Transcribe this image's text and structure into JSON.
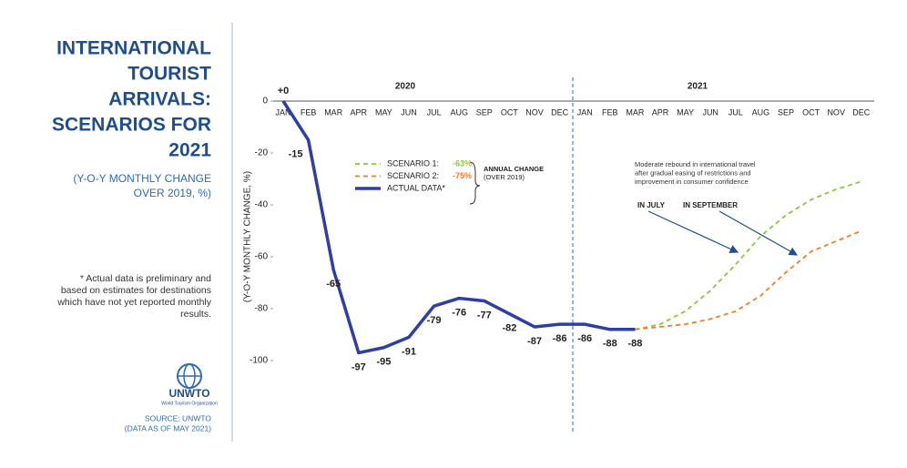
{
  "chart_data": {
    "type": "line",
    "title": [
      "INTERNATIONAL",
      "TOURIST",
      "ARRIVALS:",
      "SCENARIOS FOR",
      "2021"
    ],
    "subtitle": [
      "(Y-O-Y MONTHLY CHANGE",
      "OVER 2019, %)"
    ],
    "note": [
      "* Actual data is preliminary and",
      "based on estimates for destinations",
      "which have not yet reported monthly",
      "results."
    ],
    "logo": [
      "UNWTO",
      "World Tourism Organization"
    ],
    "source": [
      "SOURCE: UNWTO",
      "(DATA AS OF MAY 2021)"
    ],
    "y_label": "(Y-O-Y MONTHLY CHANGE, %)",
    "years": [
      "2020",
      "2021"
    ],
    "categories": [
      "JAN",
      "FEB",
      "MAR",
      "APR",
      "MAY",
      "JUN",
      "JUL",
      "AUG",
      "SEP",
      "OCT",
      "NOV",
      "DEC",
      "JAN",
      "FEB",
      "MAR",
      "APR",
      "MAY",
      "JUN",
      "JUL",
      "AUG",
      "SEP",
      "OCT",
      "NOV",
      "DEC"
    ],
    "series": [
      {
        "name": "SCENARIO 1:",
        "color": "#8cc63f",
        "dashed": true,
        "annual_change": {
          "value": -63,
          "label": "-63%"
        },
        "values": [
          null,
          null,
          null,
          null,
          null,
          null,
          null,
          null,
          null,
          null,
          null,
          null,
          null,
          null,
          -88,
          -86,
          -81,
          -73,
          -63,
          -52,
          -44,
          -38,
          -34,
          -31
        ]
      },
      {
        "name": "SCENARIO 2:",
        "color": "#f07d2a",
        "dashed": true,
        "annual_change": {
          "value": -75,
          "label": "-75%"
        },
        "values": [
          null,
          null,
          null,
          null,
          null,
          null,
          null,
          null,
          null,
          null,
          null,
          null,
          null,
          null,
          -88,
          -87,
          -86,
          -84,
          -81,
          -75,
          -66,
          -58,
          -54,
          -50
        ]
      },
      {
        "name": "ACTUAL DATA*",
        "color": "#2e3fa3",
        "dashed": false,
        "values": [
          0,
          -15,
          -65,
          -97,
          -95,
          -91,
          -79,
          -76,
          -77,
          -82,
          -87,
          -86,
          -86,
          -88,
          -88,
          null,
          null,
          null,
          null,
          null,
          null,
          null,
          null,
          null
        ],
        "value_labels": [
          "+0",
          "-15",
          "-65",
          "-97",
          "-95",
          "-91",
          "-79",
          "-76",
          "-77",
          "-82",
          "-87",
          "-86",
          "-86",
          "-88",
          "-88",
          null,
          null,
          null,
          null,
          null,
          null,
          null,
          null,
          null
        ]
      }
    ],
    "legend_group_label": [
      "ANNUAL CHANGE",
      "(OVER 2019)"
    ],
    "annotations": [
      "Moderate rebound in international travel",
      "after gradual easing of restrictions and",
      "improvement in consumer confidence"
    ],
    "arrow_labels": [
      "IN JULY",
      "IN SEPTEMBER"
    ],
    "ylim": [
      -100,
      0
    ],
    "yticks": [
      0,
      -20,
      -40,
      -60,
      -80,
      -100
    ],
    "grid": false
  }
}
